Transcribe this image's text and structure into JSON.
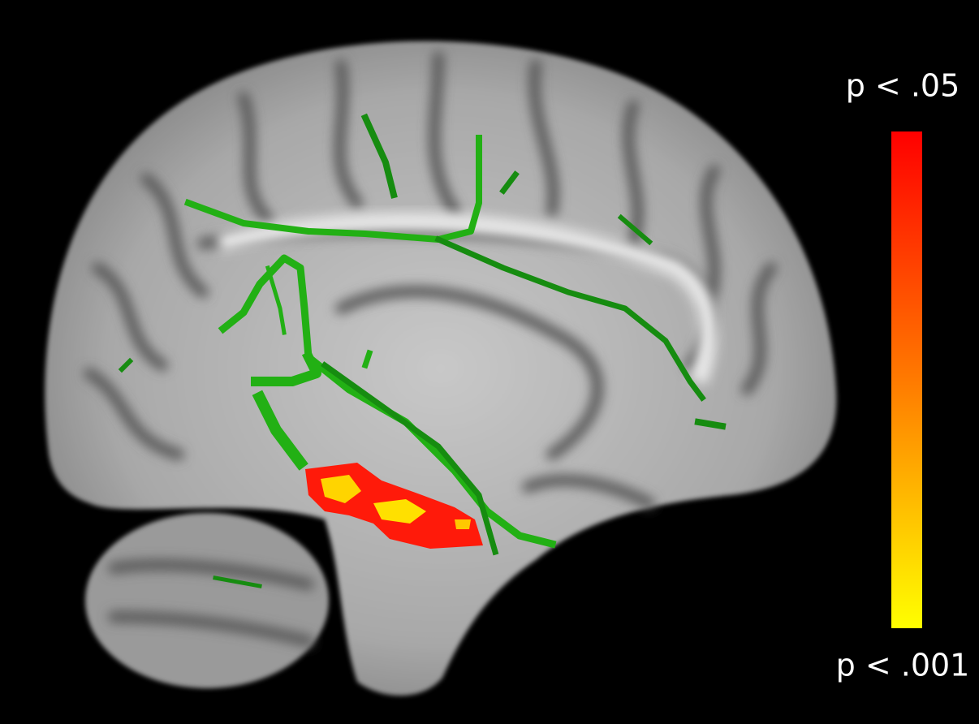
{
  "colorbar": {
    "top_label": "p < .05",
    "bottom_label": "p < .001"
  }
}
